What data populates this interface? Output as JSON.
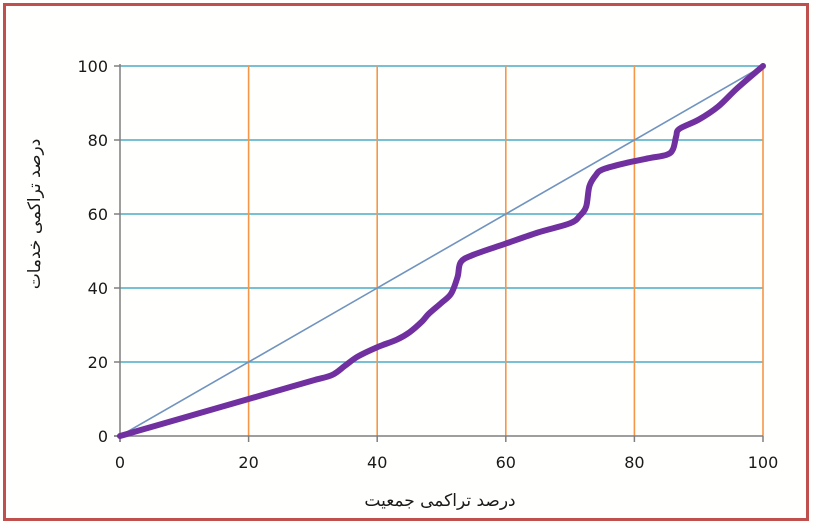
{
  "chart_data": {
    "type": "line",
    "title": "",
    "xlabel": "درصد تراکمی جمعیت",
    "ylabel": "درصد تراکمی خدمات",
    "xlim": [
      0,
      100
    ],
    "ylim": [
      0,
      100
    ],
    "x_ticks": [
      0,
      20,
      40,
      60,
      80,
      100
    ],
    "y_ticks": [
      0,
      20,
      40,
      60,
      80,
      100
    ],
    "x_tick_labels": [
      "0",
      "20",
      "40",
      "60",
      "80",
      "100"
    ],
    "y_tick_labels": [
      "0",
      "20",
      "40",
      "60",
      "80",
      "100"
    ],
    "grid": true,
    "legend": "none",
    "colors": {
      "frame_border": "#c0504d",
      "horizontal_grid": "#4bacc6",
      "vertical_grid": "#f79646",
      "equality_line": "#7093c0",
      "curve": "#7030a0"
    },
    "series": [
      {
        "x": [
          0,
          100
        ],
        "y": [
          0,
          100
        ]
      },
      {
        "x": [
          0,
          5,
          10,
          15,
          20,
          25,
          30,
          33,
          35,
          37,
          40,
          43,
          45,
          47,
          48,
          50,
          51.5,
          52.5,
          53,
          55,
          60,
          65,
          70,
          71.5,
          72.5,
          73,
          74,
          75,
          78,
          82,
          85,
          86,
          86.5,
          87,
          90,
          93,
          96,
          100
        ],
        "y": [
          0,
          2.5,
          5,
          7.5,
          10,
          12.5,
          15,
          16.5,
          19,
          21.5,
          24,
          26,
          28,
          31,
          33,
          36,
          38.5,
          43,
          47,
          49,
          52,
          55,
          57.5,
          59.5,
          62,
          67.5,
          70.5,
          72,
          73.5,
          75,
          76,
          77.5,
          81,
          83,
          85.5,
          89,
          94,
          100
        ]
      }
    ]
  }
}
